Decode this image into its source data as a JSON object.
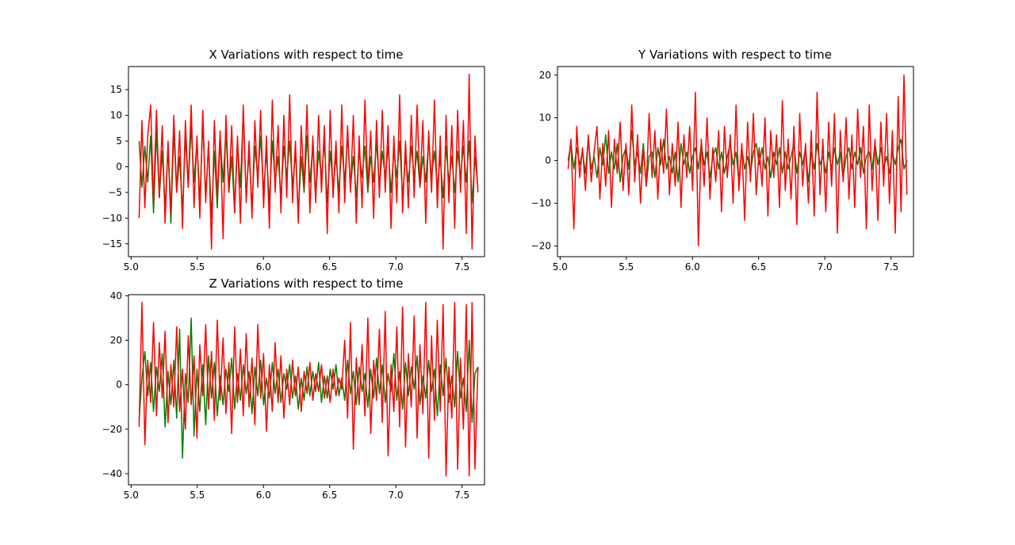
{
  "chart_data": [
    {
      "type": "line",
      "title": "X Variations with respect to time",
      "xlabel": "",
      "ylabel": "",
      "xlim": [
        4.98,
        7.67
      ],
      "ylim": [
        -17.5,
        19.5
      ],
      "xticks": [
        5.0,
        5.5,
        6.0,
        6.5,
        7.0,
        7.5
      ],
      "xtick_labels": [
        "5.0",
        "5.5",
        "6.0",
        "6.5",
        "7.0",
        "7.5"
      ],
      "yticks": [
        -15,
        -10,
        -5,
        0,
        5,
        10,
        15
      ],
      "ytick_labels": [
        "−15",
        "−10",
        "−5",
        "0",
        "5",
        "10",
        "15"
      ],
      "grid": false,
      "x_start": 5.06,
      "x_end": 7.62,
      "series": [
        {
          "color": "#008000",
          "values": [
            5,
            -4,
            4,
            -3,
            6,
            -9,
            7,
            -6,
            3,
            -8,
            4,
            -11,
            7,
            -5,
            2,
            -9,
            6,
            -4,
            8,
            -3,
            5,
            -7,
            9,
            -6,
            4,
            -10,
            3,
            -8,
            6,
            -3,
            7,
            -5,
            2,
            -9,
            5,
            -4,
            11,
            -6,
            3,
            -8,
            4,
            -2,
            6,
            -5,
            3,
            -7,
            5,
            -3,
            2,
            -6,
            4,
            -2,
            5,
            -4,
            3,
            -9,
            2,
            -5,
            6,
            -3,
            4,
            -6,
            3,
            -2,
            5,
            -7,
            3,
            -4,
            2,
            -5,
            4,
            -3,
            6,
            -4,
            2,
            -6,
            3,
            -2,
            4,
            -5,
            2,
            -3,
            5,
            -4,
            3,
            -2,
            4,
            -5,
            3,
            -2,
            5,
            -6,
            2,
            -3,
            4,
            -2,
            3,
            -4,
            2,
            -3,
            5,
            -2,
            3,
            -4,
            2,
            -6,
            4,
            -3,
            2,
            -5,
            3,
            -2,
            4,
            -3,
            5,
            -7,
            2,
            -4
          ]
        },
        {
          "color": "#ff0000",
          "values": [
            -10,
            9,
            -8,
            6,
            12,
            -7,
            11,
            -6,
            8,
            -11,
            5,
            -9,
            10,
            -5,
            7,
            -12,
            9,
            -4,
            12,
            -8,
            6,
            -10,
            11,
            -7,
            5,
            -16,
            9,
            -6,
            7,
            -14,
            10,
            -5,
            8,
            -9,
            6,
            -11,
            12,
            -7,
            5,
            -10,
            9,
            -4,
            11,
            -8,
            6,
            -12,
            13,
            -5,
            8,
            -9,
            10,
            -6,
            14,
            -7,
            5,
            -11,
            8,
            -4,
            12,
            -9,
            6,
            -7,
            10,
            -5,
            8,
            -13,
            11,
            -6,
            5,
            -9,
            12,
            -7,
            8,
            -5,
            10,
            -11,
            6,
            -8,
            13,
            -4,
            7,
            -10,
            9,
            -6,
            11,
            -5,
            8,
            -12,
            6,
            -7,
            14,
            -9,
            5,
            -8,
            10,
            -6,
            12,
            -4,
            9,
            -11,
            7,
            -5,
            13,
            -8,
            6,
            -16,
            10,
            -7,
            8,
            -12,
            11,
            -5,
            9,
            -13,
            18,
            -16,
            6,
            -5
          ]
        }
      ]
    },
    {
      "type": "line",
      "title": "Y Variations with respect to time",
      "xlabel": "",
      "ylabel": "",
      "xlim": [
        4.98,
        7.67
      ],
      "ylim": [
        -22.5,
        22
      ],
      "xticks": [
        5.0,
        5.5,
        6.0,
        6.5,
        7.0,
        7.5
      ],
      "xtick_labels": [
        "5.0",
        "5.5",
        "6.0",
        "6.5",
        "7.0",
        "7.5"
      ],
      "yticks": [
        -20,
        -10,
        0,
        10,
        20
      ],
      "ytick_labels": [
        "−20",
        "−10",
        "0",
        "10",
        "20"
      ],
      "grid": false,
      "x_start": 5.06,
      "x_end": 7.62,
      "series": [
        {
          "color": "#008000",
          "values": [
            0,
            4,
            -2,
            3,
            -1,
            2,
            -3,
            5,
            -2,
            1,
            -4,
            3,
            -1,
            6,
            -3,
            2,
            -2,
            4,
            -5,
            1,
            3,
            -2,
            7,
            -1,
            2,
            -3,
            4,
            -6,
            1,
            2,
            -4,
            3,
            -1,
            5,
            -2,
            1,
            -3,
            2,
            -5,
            4,
            -1,
            2,
            -3,
            1,
            3,
            -2,
            4,
            -1,
            2,
            -4,
            1,
            3,
            -2,
            2,
            -3,
            1,
            4,
            -1,
            2,
            -5,
            3,
            -2,
            1,
            -3,
            2,
            4,
            -1,
            3,
            -2,
            1,
            -4,
            2,
            -1,
            3,
            -3,
            2,
            -2,
            1,
            4,
            -3,
            2,
            -1,
            3,
            -5,
            2,
            -2,
            4,
            -1,
            1,
            -3,
            2,
            -2,
            3,
            -1,
            2,
            -4,
            1,
            3,
            -2,
            2,
            -1,
            3,
            -3,
            1,
            2,
            -2,
            4,
            -1,
            3,
            -2,
            1,
            -3,
            2,
            -1,
            3,
            5,
            -2,
            0
          ]
        },
        {
          "color": "#ff0000",
          "values": [
            -2,
            5,
            -16,
            8,
            -4,
            3,
            -7,
            6,
            -5,
            2,
            8,
            -9,
            4,
            -6,
            7,
            -11,
            5,
            -3,
            9,
            -7,
            4,
            -8,
            13,
            -5,
            6,
            -10,
            3,
            -6,
            11,
            -4,
            7,
            -9,
            5,
            -3,
            12,
            -8,
            4,
            -6,
            9,
            -11,
            6,
            -4,
            8,
            -7,
            16,
            -20,
            5,
            -6,
            10,
            -9,
            3,
            -5,
            7,
            -12,
            8,
            -4,
            6,
            -10,
            13,
            -7,
            4,
            -14,
            9,
            -5,
            11,
            -8,
            3,
            -6,
            10,
            -13,
            7,
            -4,
            6,
            -11,
            14,
            -7,
            5,
            -9,
            8,
            -15,
            11,
            -6,
            4,
            -10,
            7,
            -13,
            16,
            -8,
            5,
            -12,
            9,
            -6,
            11,
            -17,
            7,
            -5,
            10,
            -9,
            6,
            -11,
            12,
            -4,
            8,
            -16,
            13,
            -7,
            5,
            -14,
            9,
            -6,
            11,
            -10,
            7,
            -17,
            15,
            -12,
            20,
            -8
          ]
        }
      ]
    },
    {
      "type": "line",
      "title": "Z Variations with respect to time",
      "xlabel": "",
      "ylabel": "",
      "xlim": [
        4.98,
        7.67
      ],
      "ylim": [
        -45,
        40.5
      ],
      "xticks": [
        5.0,
        5.5,
        6.0,
        6.5,
        7.0,
        7.5
      ],
      "xtick_labels": [
        "5.0",
        "5.5",
        "6.0",
        "6.5",
        "7.0",
        "7.5"
      ],
      "yticks": [
        -40,
        -20,
        0,
        20,
        40
      ],
      "ytick_labels": [
        "−40",
        "−20",
        "0",
        "20",
        "40"
      ],
      "grid": false,
      "x_start": 5.06,
      "x_end": 7.62,
      "series": [
        {
          "color": "#008000",
          "values": [
            -16,
            3,
            15,
            -5,
            10,
            -12,
            8,
            -3,
            14,
            -19,
            6,
            -9,
            11,
            -15,
            25,
            -33,
            5,
            -8,
            30,
            -23,
            7,
            -12,
            9,
            -18,
            13,
            -6,
            10,
            -14,
            4,
            -9,
            7,
            -3,
            12,
            -11,
            5,
            -7,
            9,
            -4,
            6,
            -13,
            8,
            -5,
            11,
            -9,
            3,
            -6,
            10,
            -4,
            7,
            -8,
            5,
            -2,
            9,
            -6,
            4,
            -11,
            3,
            -7,
            8,
            -5,
            6,
            -3,
            10,
            -8,
            4,
            -6,
            7,
            -2,
            9,
            -5,
            3,
            -7,
            11,
            -4,
            6,
            -9,
            8,
            -3,
            5,
            -10,
            7,
            -6,
            12,
            -4,
            9,
            -8,
            5,
            -3,
            14,
            -7,
            6,
            -11,
            10,
            -5,
            8,
            -2,
            13,
            -9,
            4,
            -6,
            11,
            -3,
            7,
            -14,
            9,
            -5,
            12,
            -8,
            4,
            -10,
            15,
            -6,
            3,
            -12,
            20,
            -17,
            5,
            8
          ]
        },
        {
          "color": "#ff0000",
          "values": [
            -19,
            37,
            -27,
            11,
            -8,
            28,
            -14,
            19,
            -6,
            24,
            -17,
            9,
            -10,
            26,
            -12,
            7,
            -20,
            22,
            -9,
            13,
            -24,
            18,
            -5,
            27,
            -11,
            15,
            -16,
            29,
            -7,
            21,
            -13,
            10,
            -22,
            26,
            -8,
            16,
            -14,
            23,
            -10,
            12,
            -18,
            27,
            -6,
            14,
            -21,
            9,
            -12,
            19,
            -8,
            13,
            -15,
            7,
            -9,
            11,
            -5,
            8,
            -12,
            6,
            -4,
            10,
            -7,
            5,
            -3,
            9,
            -6,
            4,
            -8,
            7,
            -5,
            3,
            -2,
            20,
            -15,
            28,
            -29,
            12,
            -9,
            18,
            -14,
            30,
            -22,
            11,
            -7,
            25,
            -17,
            33,
            -32,
            9,
            -12,
            26,
            -19,
            35,
            -28,
            14,
            -10,
            31,
            -24,
            18,
            -13,
            37,
            -33,
            22,
            -16,
            29,
            -12,
            36,
            -41,
            8,
            -15,
            37,
            -38,
            12,
            -20,
            36,
            -41,
            37,
            -38,
            8
          ]
        }
      ]
    }
  ]
}
